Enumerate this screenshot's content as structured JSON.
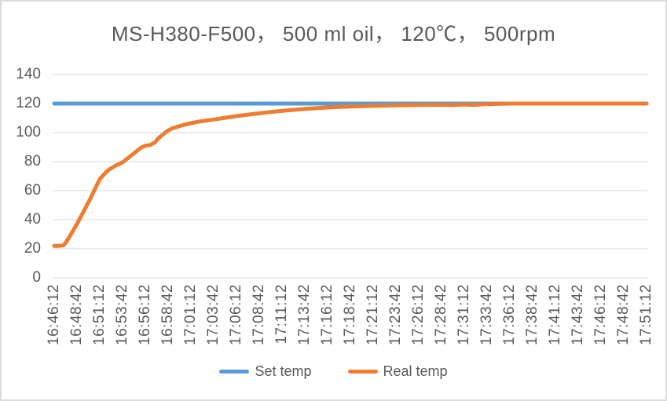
{
  "page": {
    "background": "#ffffff",
    "border_color": "#dcdcdc"
  },
  "chart_data": {
    "type": "line",
    "title": "MS-H380-F500，  500 ml oil，  120℃，  500rpm",
    "title_color": "#595959",
    "axis_label_color": "#595959",
    "gridline_color": "#d9d9d9",
    "grid": "horizontal",
    "ylim": [
      0,
      140
    ],
    "y_ticks": [
      0,
      20,
      40,
      60,
      80,
      100,
      120,
      140
    ],
    "x_tick_labels": [
      "16:46:12",
      "16:48:42",
      "16:51:12",
      "16:53:42",
      "16:56:12",
      "16:58:42",
      "17:01:12",
      "17:03:42",
      "17:06:12",
      "17:08:42",
      "17:11:12",
      "17:13:42",
      "17:16:12",
      "17:18:42",
      "17:21:12",
      "17:23:42",
      "17:26:12",
      "17:28:42",
      "17:31:12",
      "17:33:42",
      "17:36:12",
      "17:38:42",
      "17:41:12",
      "17:43:42",
      "17:46:12",
      "17:48:42",
      "17:51:12"
    ],
    "x_range_seconds": [
      0,
      3900
    ],
    "x_tick_interval_seconds": 150,
    "legend_position": "bottom",
    "legend": [
      {
        "label": "Set temp",
        "color": "#5b9bd5"
      },
      {
        "label": "Real temp",
        "color": "#ed7d31"
      }
    ],
    "series": [
      {
        "name": "Set temp",
        "color": "#5b9bd5",
        "points": [
          [
            0,
            120
          ],
          [
            3900,
            120
          ]
        ]
      },
      {
        "name": "Real temp",
        "color": "#ed7d31",
        "points": [
          [
            0,
            22
          ],
          [
            30,
            22
          ],
          [
            60,
            22.3
          ],
          [
            75,
            24
          ],
          [
            105,
            29
          ],
          [
            135,
            34.5
          ],
          [
            150,
            37
          ],
          [
            180,
            43
          ],
          [
            210,
            49
          ],
          [
            240,
            55
          ],
          [
            270,
            61.5
          ],
          [
            300,
            68
          ],
          [
            330,
            71.5
          ],
          [
            360,
            74.5
          ],
          [
            400,
            77
          ],
          [
            450,
            79.5
          ],
          [
            480,
            82
          ],
          [
            510,
            84.5
          ],
          [
            540,
            87
          ],
          [
            570,
            89.5
          ],
          [
            600,
            91
          ],
          [
            630,
            91.4
          ],
          [
            660,
            93
          ],
          [
            690,
            96.5
          ],
          [
            720,
            99
          ],
          [
            750,
            101.5
          ],
          [
            780,
            103
          ],
          [
            810,
            104
          ],
          [
            840,
            105
          ],
          [
            870,
            105.8
          ],
          [
            900,
            106.5
          ],
          [
            950,
            107.5
          ],
          [
            1000,
            108.3
          ],
          [
            1050,
            109
          ],
          [
            1125,
            110.2
          ],
          [
            1200,
            111.4
          ],
          [
            1275,
            112.4
          ],
          [
            1350,
            113.3
          ],
          [
            1425,
            114.2
          ],
          [
            1500,
            115
          ],
          [
            1575,
            115.7
          ],
          [
            1650,
            116.3
          ],
          [
            1725,
            116.8
          ],
          [
            1800,
            117.3
          ],
          [
            1875,
            117.7
          ],
          [
            1950,
            118
          ],
          [
            2025,
            118.2
          ],
          [
            2100,
            118.4
          ],
          [
            2175,
            118.6
          ],
          [
            2250,
            118.8
          ],
          [
            2325,
            118.9
          ],
          [
            2400,
            119
          ],
          [
            2475,
            119.1
          ],
          [
            2550,
            119.2
          ],
          [
            2625,
            118.9
          ],
          [
            2700,
            119.4
          ],
          [
            2760,
            119.0
          ],
          [
            2820,
            119.5
          ],
          [
            2880,
            119.7
          ],
          [
            2940,
            119.9
          ],
          [
            3000,
            120
          ],
          [
            3300,
            120
          ],
          [
            3600,
            120
          ],
          [
            3900,
            120
          ]
        ]
      }
    ]
  }
}
